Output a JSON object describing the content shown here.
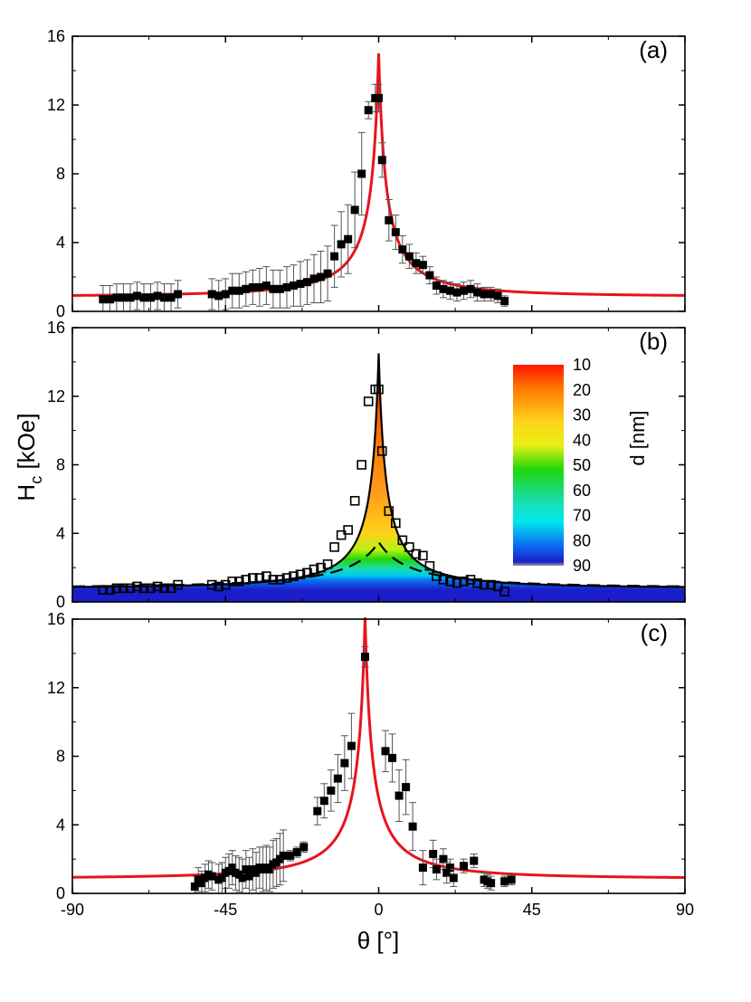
{
  "chart_data": [
    {
      "panel": "(a)",
      "type": "scatter",
      "xlim": [
        -90,
        90
      ],
      "ylim": [
        0,
        16
      ],
      "xticks": [
        -90,
        -45,
        0,
        45,
        90
      ],
      "yticks": [
        0,
        4,
        8,
        12,
        16
      ],
      "colors": {
        "points": "#000000",
        "fit": "#e8141c"
      },
      "series": [
        {
          "kind": "points-with-errorbars",
          "x": [
            -81,
            -79,
            -77,
            -75,
            -73,
            -71,
            -69,
            -67,
            -65,
            -63,
            -61,
            -59,
            -49,
            -47,
            -45,
            -43,
            -41,
            -39,
            -37,
            -35,
            -33,
            -31,
            -29,
            -27,
            -25,
            -23,
            -21,
            -19,
            -17,
            -15,
            -13,
            -11,
            -9,
            -7,
            -5,
            -3,
            -1,
            0,
            1,
            3,
            5,
            7,
            9,
            11,
            13,
            15,
            17,
            19,
            21,
            23,
            25,
            27,
            29,
            31,
            33,
            35,
            37
          ],
          "y": [
            0.7,
            0.7,
            0.8,
            0.8,
            0.8,
            0.9,
            0.8,
            0.8,
            0.9,
            0.8,
            0.8,
            1.0,
            1.0,
            0.9,
            1.0,
            1.2,
            1.2,
            1.3,
            1.4,
            1.4,
            1.5,
            1.3,
            1.3,
            1.4,
            1.5,
            1.6,
            1.7,
            1.9,
            2.0,
            2.2,
            3.2,
            3.9,
            4.2,
            5.9,
            8.0,
            11.7,
            12.4,
            12.4,
            8.8,
            5.3,
            4.6,
            3.6,
            3.2,
            2.8,
            2.7,
            2.1,
            1.5,
            1.3,
            1.2,
            1.1,
            1.2,
            1.3,
            1.1,
            1.0,
            1.0,
            0.9,
            0.6
          ],
          "err": [
            0.8,
            0.8,
            0.8,
            0.8,
            0.8,
            0.8,
            0.8,
            0.8,
            0.8,
            0.8,
            0.8,
            0.8,
            0.9,
            0.9,
            0.9,
            1.0,
            1.0,
            1.0,
            1.0,
            1.1,
            1.1,
            1.1,
            1.1,
            1.2,
            1.2,
            1.3,
            1.3,
            1.4,
            1.5,
            1.6,
            1.8,
            1.9,
            2.0,
            2.2,
            2.4,
            0.5,
            0.8,
            0.8,
            1.0,
            1.2,
            1.0,
            0.8,
            0.7,
            0.6,
            0.5,
            0.5,
            0.5,
            0.5,
            0.5,
            0.5,
            0.5,
            0.5,
            0.5,
            0.4,
            0.4,
            0.4,
            0.3
          ]
        },
        {
          "kind": "fit-curve",
          "peak_x": 0,
          "peak_y": 15.0,
          "base_y": 0.85
        }
      ]
    },
    {
      "panel": "(b)",
      "type": "area",
      "xlim": [
        -90,
        90
      ],
      "ylim": [
        0,
        16
      ],
      "xticks": [
        -90,
        -45,
        0,
        45,
        90
      ],
      "yticks": [
        0,
        4,
        8,
        12,
        16
      ],
      "ylabel_main": "H",
      "ylabel_sub": "c",
      "ylabel_unit": " [kOe]",
      "colorbar": {
        "label": "d [nm]",
        "ticks": [
          "10",
          "20",
          "30",
          "40",
          "50",
          "60",
          "70",
          "80",
          "90"
        ],
        "stops": [
          "#ff1500",
          "#ff7a00",
          "#ffd21a",
          "#e8f014",
          "#22d60a",
          "#19ddb0",
          "#00e8f0",
          "#0a6cf0",
          "#1a1ec8"
        ]
      },
      "series": [
        {
          "kind": "open-squares",
          "x": [
            -81,
            -79,
            -77,
            -75,
            -73,
            -71,
            -69,
            -67,
            -65,
            -63,
            -61,
            -59,
            -49,
            -47,
            -45,
            -43,
            -41,
            -39,
            -37,
            -35,
            -33,
            -31,
            -29,
            -27,
            -25,
            -23,
            -21,
            -19,
            -17,
            -15,
            -13,
            -11,
            -9,
            -7,
            -5,
            -3,
            -1,
            0,
            1,
            3,
            5,
            7,
            9,
            11,
            13,
            15,
            17,
            19,
            21,
            23,
            25,
            27,
            29,
            31,
            33,
            35,
            37
          ],
          "y": [
            0.7,
            0.7,
            0.8,
            0.8,
            0.8,
            0.9,
            0.8,
            0.8,
            0.9,
            0.8,
            0.8,
            1.0,
            1.0,
            0.9,
            1.0,
            1.2,
            1.2,
            1.3,
            1.4,
            1.4,
            1.5,
            1.3,
            1.3,
            1.4,
            1.5,
            1.6,
            1.7,
            1.9,
            2.0,
            2.2,
            3.2,
            3.9,
            4.2,
            5.9,
            8.0,
            11.7,
            12.4,
            12.4,
            8.8,
            5.3,
            4.6,
            3.6,
            3.2,
            2.8,
            2.7,
            2.1,
            1.5,
            1.3,
            1.2,
            1.1,
            1.2,
            1.3,
            1.1,
            1.0,
            1.0,
            0.9,
            0.6
          ]
        },
        {
          "kind": "envelope",
          "peak_y": 14.5,
          "base_y": 0.8
        },
        {
          "kind": "dashed",
          "peak_y": 3.5,
          "base_y": 0.8
        }
      ]
    },
    {
      "panel": "(c)",
      "type": "scatter",
      "xlim": [
        -90,
        90
      ],
      "ylim": [
        0,
        16
      ],
      "xticks": [
        -90,
        -45,
        0,
        45,
        90
      ],
      "yticks": [
        0,
        4,
        8,
        12,
        16
      ],
      "xlabel": "θ [°]",
      "xticklabels": [
        "-90",
        "-45",
        "0",
        "45",
        "90"
      ],
      "colors": {
        "points": "#000000",
        "fit": "#e8141c"
      },
      "series": [
        {
          "kind": "points-with-errorbars",
          "x": [
            -54,
            -53,
            -52,
            -51,
            -50,
            -49,
            -47,
            -46,
            -45,
            -44,
            -43,
            -42,
            -41,
            -40,
            -39,
            -38,
            -37,
            -36,
            -35,
            -34,
            -33,
            -32,
            -31,
            -30,
            -29,
            -28,
            -26,
            -24,
            -22,
            -18,
            -16,
            -14,
            -12,
            -10,
            -8,
            -4,
            2,
            4,
            6,
            8,
            10,
            13,
            16,
            17,
            19,
            20,
            21,
            22,
            25,
            28,
            31,
            32,
            33,
            37,
            39
          ],
          "y": [
            0.4,
            0.8,
            0.6,
            0.9,
            1.1,
            1.0,
            0.8,
            0.9,
            1.2,
            1.3,
            1.5,
            1.2,
            1.1,
            0.9,
            1.4,
            1.0,
            1.4,
            1.2,
            1.5,
            1.4,
            1.5,
            1.4,
            1.7,
            1.8,
            2.0,
            2.2,
            2.2,
            2.4,
            2.7,
            4.8,
            5.4,
            6.0,
            6.7,
            7.6,
            8.6,
            13.8,
            8.3,
            7.9,
            5.7,
            6.2,
            3.9,
            1.5,
            2.3,
            1.4,
            2.0,
            1.2,
            1.5,
            0.9,
            1.6,
            1.9,
            0.8,
            0.7,
            0.6,
            0.7,
            0.8
          ],
          "err": [
            0.6,
            0.7,
            0.7,
            0.8,
            0.8,
            0.8,
            0.9,
            0.9,
            0.9,
            1.0,
            1.0,
            1.0,
            1.0,
            1.1,
            1.1,
            1.1,
            1.2,
            1.2,
            1.2,
            1.3,
            1.3,
            1.3,
            1.4,
            1.4,
            1.5,
            1.5,
            0.3,
            0.3,
            0.3,
            0.8,
            1.0,
            1.2,
            1.4,
            1.6,
            1.9,
            0.6,
            1.2,
            1.4,
            1.5,
            1.6,
            1.4,
            1.0,
            0.8,
            0.6,
            0.6,
            0.6,
            0.5,
            0.5,
            0.4,
            0.4,
            0.4,
            0.4,
            0.4,
            0.3,
            0.3
          ]
        },
        {
          "kind": "fit-curve",
          "peak_x": -4,
          "peak_y": 16.1,
          "base_y": 0.85
        }
      ]
    }
  ]
}
